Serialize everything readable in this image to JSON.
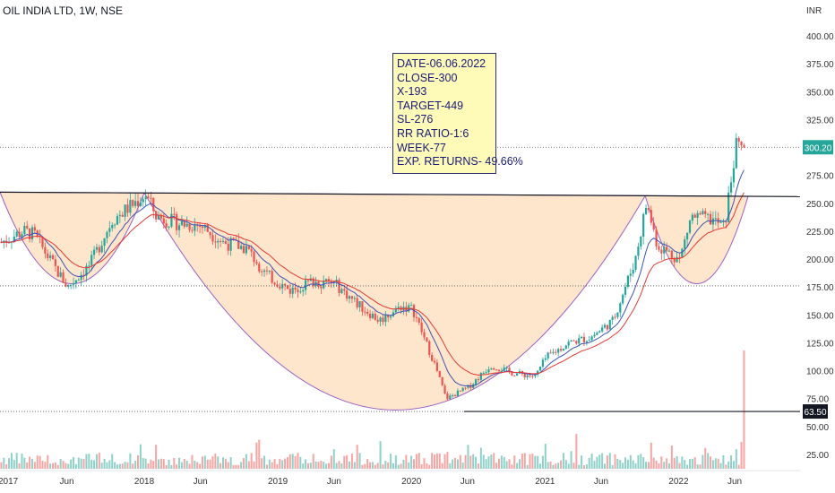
{
  "header": {
    "title": "OIL INDIA LTD, 1W, NSE"
  },
  "note": {
    "lines": [
      "DATE-06.06.2022",
      "CLOSE-300",
      "X-193",
      "TARGET-449",
      "SL-276",
      "RR RATIO-1:6",
      "WEEK-77",
      "EXP. RETURNS- 49.66%"
    ]
  },
  "colors": {
    "up": "#26a69a",
    "down": "#ef5350",
    "fill": "#fde6cb",
    "arc": "#9c5fc4",
    "ema_fast": "#3f51b5",
    "ema_slow": "#e53935",
    "price_tag": "#26a69a",
    "level_tag": "#131722"
  },
  "chart_data": {
    "type": "candlestick",
    "title": "OIL INDIA LTD, 1W, NSE",
    "y_unit": "INR",
    "y_ticks": [
      25,
      50,
      75,
      100,
      125,
      150,
      175,
      200,
      225,
      250,
      275,
      300,
      325,
      350,
      375,
      400
    ],
    "x_ticks": [
      "2017",
      "Jun",
      "2018",
      "Jun",
      "2019",
      "Jun",
      "2020",
      "Jun",
      "2021",
      "Jun",
      "2022",
      "Jun"
    ],
    "ylim": [
      10,
      415
    ],
    "last_price": "300.20",
    "level_label": "63.50",
    "levels": [
      63.5,
      176,
      300.2
    ],
    "neckline": [
      [
        "2016-12",
        260
      ],
      [
        "2022-06",
        256
      ]
    ],
    "close_path": [
      [
        "2016-12",
        215
      ],
      [
        "2017-02",
        225
      ],
      [
        "2017-03",
        222
      ],
      [
        "2017-05",
        190
      ],
      [
        "2017-06",
        175
      ],
      [
        "2017-08",
        195
      ],
      [
        "2017-10",
        235
      ],
      [
        "2017-12",
        250
      ],
      [
        "2018-01",
        258
      ],
      [
        "2018-02",
        238
      ],
      [
        "2018-04",
        232
      ],
      [
        "2018-06",
        230
      ],
      [
        "2018-08",
        215
      ],
      [
        "2018-10",
        210
      ],
      [
        "2018-12",
        185
      ],
      [
        "2019-02",
        172
      ],
      [
        "2019-04",
        180
      ],
      [
        "2019-06",
        178
      ],
      [
        "2019-08",
        160
      ],
      [
        "2019-10",
        145
      ],
      [
        "2019-12",
        158
      ],
      [
        "2020-01",
        155
      ],
      [
        "2020-03",
        105
      ],
      [
        "2020-04",
        75
      ],
      [
        "2020-06",
        85
      ],
      [
        "2020-08",
        105
      ],
      [
        "2020-10",
        98
      ],
      [
        "2020-12",
        95
      ],
      [
        "2021-01",
        112
      ],
      [
        "2021-03",
        125
      ],
      [
        "2021-05",
        130
      ],
      [
        "2021-07",
        145
      ],
      [
        "2021-09",
        200
      ],
      [
        "2021-10",
        250
      ],
      [
        "2021-11",
        212
      ],
      [
        "2022-01",
        200
      ],
      [
        "2022-02",
        238
      ],
      [
        "2022-04",
        235
      ],
      [
        "2022-05",
        228
      ],
      [
        "2022-06",
        300
      ]
    ]
  }
}
